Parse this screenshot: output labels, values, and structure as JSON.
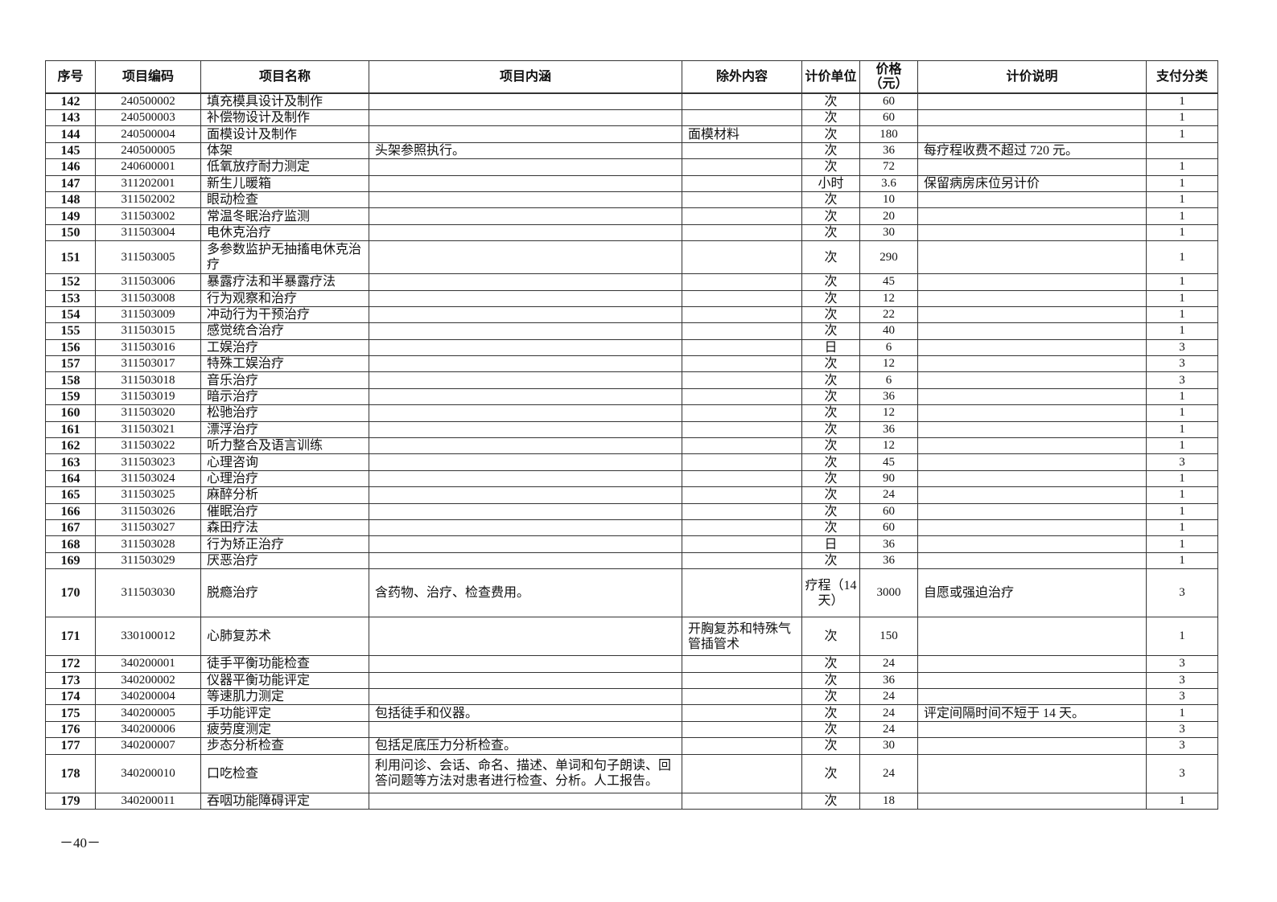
{
  "table": {
    "headers": [
      "序号",
      "项目编码",
      "项目名称",
      "项目内涵",
      "除外内容",
      "计价单位",
      "价格（元）",
      "计价说明",
      "支付分类"
    ],
    "rows": [
      [
        "142",
        "240500002",
        "填充模具设计及制作",
        "",
        "",
        "次",
        "60",
        "",
        "1"
      ],
      [
        "143",
        "240500003",
        "补偿物设计及制作",
        "",
        "",
        "次",
        "60",
        "",
        "1"
      ],
      [
        "144",
        "240500004",
        "面模设计及制作",
        "",
        "面模材料",
        "次",
        "180",
        "",
        "1"
      ],
      [
        "145",
        "240500005",
        "体架",
        "头架参照执行。",
        "",
        "次",
        "36",
        "每疗程收费不超过 720 元。",
        ""
      ],
      [
        "146",
        "240600001",
        "低氧放疗耐力测定",
        "",
        "",
        "次",
        "72",
        "",
        "1"
      ],
      [
        "147",
        "311202001",
        "新生儿暖箱",
        "",
        "",
        "小时",
        "3.6",
        "保留病房床位另计价",
        "1"
      ],
      [
        "148",
        "311502002",
        "眼动检查",
        "",
        "",
        "次",
        "10",
        "",
        "1"
      ],
      [
        "149",
        "311503002",
        "常温冬眠治疗监测",
        "",
        "",
        "次",
        "20",
        "",
        "1"
      ],
      [
        "150",
        "311503004",
        "电休克治疗",
        "",
        "",
        "次",
        "30",
        "",
        "1"
      ],
      [
        "151",
        "311503005",
        "多参数监护无抽搐电休克治疗",
        "",
        "",
        "次",
        "290",
        "",
        "1"
      ],
      [
        "152",
        "311503006",
        "暴露疗法和半暴露疗法",
        "",
        "",
        "次",
        "45",
        "",
        "1"
      ],
      [
        "153",
        "311503008",
        "行为观察和治疗",
        "",
        "",
        "次",
        "12",
        "",
        "1"
      ],
      [
        "154",
        "311503009",
        "冲动行为干预治疗",
        "",
        "",
        "次",
        "22",
        "",
        "1"
      ],
      [
        "155",
        "311503015",
        "感觉统合治疗",
        "",
        "",
        "次",
        "40",
        "",
        "1"
      ],
      [
        "156",
        "311503016",
        "工娱治疗",
        "",
        "",
        "日",
        "6",
        "",
        "3"
      ],
      [
        "157",
        "311503017",
        "特殊工娱治疗",
        "",
        "",
        "次",
        "12",
        "",
        "3"
      ],
      [
        "158",
        "311503018",
        "音乐治疗",
        "",
        "",
        "次",
        "6",
        "",
        "3"
      ],
      [
        "159",
        "311503019",
        "暗示治疗",
        "",
        "",
        "次",
        "36",
        "",
        "1"
      ],
      [
        "160",
        "311503020",
        "松驰治疗",
        "",
        "",
        "次",
        "12",
        "",
        "1"
      ],
      [
        "161",
        "311503021",
        "漂浮治疗",
        "",
        "",
        "次",
        "36",
        "",
        "1"
      ],
      [
        "162",
        "311503022",
        "听力整合及语言训练",
        "",
        "",
        "次",
        "12",
        "",
        "1"
      ],
      [
        "163",
        "311503023",
        "心理咨询",
        "",
        "",
        "次",
        "45",
        "",
        "3"
      ],
      [
        "164",
        "311503024",
        "心理治疗",
        "",
        "",
        "次",
        "90",
        "",
        "1"
      ],
      [
        "165",
        "311503025",
        "麻醉分析",
        "",
        "",
        "次",
        "24",
        "",
        "1"
      ],
      [
        "166",
        "311503026",
        "催眠治疗",
        "",
        "",
        "次",
        "60",
        "",
        "1"
      ],
      [
        "167",
        "311503027",
        "森田疗法",
        "",
        "",
        "次",
        "60",
        "",
        "1"
      ],
      [
        "168",
        "311503028",
        "行为矫正治疗",
        "",
        "",
        "日",
        "36",
        "",
        "1"
      ],
      [
        "169",
        "311503029",
        "厌恶治疗",
        "",
        "",
        "次",
        "36",
        "",
        "1"
      ],
      [
        "170",
        "311503030",
        "脱瘾治疗",
        "含药物、治疗、检查费用。",
        "",
        "疗程（14天）",
        "3000",
        "自愿或强迫治疗",
        "3"
      ],
      [
        "171",
        "330100012",
        "心肺复苏术",
        "",
        "开胸复苏和特殊气管插管术",
        "次",
        "150",
        "",
        "1"
      ],
      [
        "172",
        "340200001",
        "徒手平衡功能检查",
        "",
        "",
        "次",
        "24",
        "",
        "3"
      ],
      [
        "173",
        "340200002",
        "仪器平衡功能评定",
        "",
        "",
        "次",
        "36",
        "",
        "3"
      ],
      [
        "174",
        "340200004",
        "等速肌力测定",
        "",
        "",
        "次",
        "24",
        "",
        "3"
      ],
      [
        "175",
        "340200005",
        "手功能评定",
        "包括徒手和仪器。",
        "",
        "次",
        "24",
        "评定间隔时间不短于 14 天。",
        "1"
      ],
      [
        "176",
        "340200006",
        "疲劳度测定",
        "",
        "",
        "次",
        "24",
        "",
        "3"
      ],
      [
        "177",
        "340200007",
        "步态分析检查",
        "包括足底压力分析检查。",
        "",
        "次",
        "30",
        "",
        "3"
      ],
      [
        "178",
        "340200010",
        "口吃检查",
        "利用问诊、会话、命名、描述、单词和句子朗读、回答问题等方法对患者进行检查、分析。人工报告。",
        "",
        "次",
        "24",
        "",
        "3"
      ],
      [
        "179",
        "340200011",
        "吞咽功能障碍评定",
        "",
        "",
        "次",
        "18",
        "",
        "1"
      ]
    ]
  },
  "footer": {
    "page_number": "－40－"
  }
}
